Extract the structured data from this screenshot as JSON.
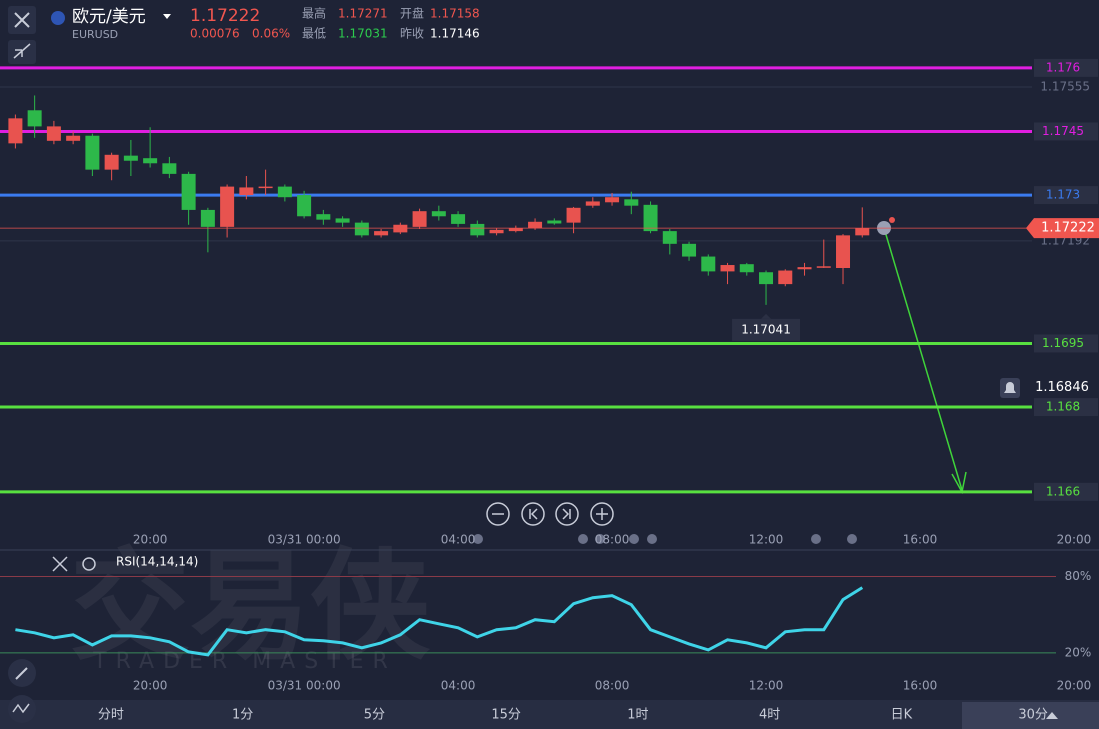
{
  "header": {
    "pair": "欧元/美元",
    "symbol": "EURUSD",
    "price": "1.17222",
    "change": "0.00076",
    "change_pct": "0.06%",
    "stats": [
      {
        "label": "最高",
        "value": "1.17271"
      },
      {
        "label": "开盘",
        "value": "1.17158"
      },
      {
        "label": "最低",
        "value": "1.17031"
      },
      {
        "label": "昨收",
        "value": "1.17146"
      }
    ]
  },
  "watermark": {
    "title": "交易侠",
    "subtitle": "TRADER MASTER"
  },
  "chart_data": [
    {
      "type": "candlestick",
      "up_color": "#e8534f",
      "down_color": "#2db84a",
      "open": [
        1.17422,
        1.175,
        1.17428,
        1.17428,
        1.1744,
        1.1736,
        1.17393,
        1.17387,
        1.17375,
        1.1735,
        1.17265,
        1.17225,
        1.173,
        1.17318,
        1.1732,
        1.173,
        1.17255,
        1.17245,
        1.17235,
        1.17205,
        1.17212,
        1.17225,
        1.17262,
        1.17255,
        1.17232,
        1.1721,
        1.17215,
        1.17222,
        1.1724,
        1.17235,
        1.17275,
        1.17283,
        1.1729,
        1.17277,
        1.17215,
        1.17185,
        1.17155,
        1.1712,
        1.17137,
        1.17118,
        1.1709,
        1.17125,
        1.1713,
        1.17128,
        1.17205
      ],
      "high": [
        1.1749,
        1.17535,
        1.17475,
        1.1745,
        1.17445,
        1.174,
        1.1743,
        1.1746,
        1.1739,
        1.17355,
        1.1727,
        1.17325,
        1.17345,
        1.1736,
        1.17325,
        1.1731,
        1.17265,
        1.1725,
        1.1724,
        1.1722,
        1.17235,
        1.17268,
        1.17275,
        1.17262,
        1.1724,
        1.17222,
        1.17228,
        1.17245,
        1.17245,
        1.17272,
        1.17295,
        1.17305,
        1.17308,
        1.17285,
        1.1722,
        1.1719,
        1.1716,
        1.1714,
        1.1714,
        1.17122,
        1.17125,
        1.1714,
        1.17195,
        1.17208,
        1.17271
      ],
      "low": [
        1.1741,
        1.17435,
        1.1742,
        1.1742,
        1.17345,
        1.17335,
        1.17345,
        1.17365,
        1.1734,
        1.1723,
        1.17165,
        1.172,
        1.1729,
        1.173,
        1.17285,
        1.17245,
        1.1723,
        1.17225,
        1.172,
        1.172,
        1.17208,
        1.1722,
        1.1724,
        1.17225,
        1.172,
        1.17205,
        1.17212,
        1.17218,
        1.1723,
        1.1721,
        1.1727,
        1.17275,
        1.17255,
        1.1721,
        1.1716,
        1.17145,
        1.1711,
        1.1709,
        1.1711,
        1.17041,
        1.17085,
        1.1711,
        1.17128,
        1.1709,
        1.172
      ],
      "close": [
        1.17481,
        1.17462,
        1.17462,
        1.1744,
        1.1736,
        1.17395,
        1.17381,
        1.17375,
        1.1735,
        1.17265,
        1.17225,
        1.1732,
        1.17318,
        1.1732,
        1.17295,
        1.1725,
        1.17242,
        1.17235,
        1.17205,
        1.17215,
        1.1723,
        1.17262,
        1.1725,
        1.17232,
        1.17205,
        1.17218,
        1.17222,
        1.17237,
        1.17233,
        1.1727,
        1.17285,
        1.17295,
        1.17275,
        1.17215,
        1.17185,
        1.17155,
        1.1712,
        1.17135,
        1.17118,
        1.1709,
        1.17122,
        1.1713,
        1.17132,
        1.17205,
        1.17222
      ],
      "xlim": [
        -0.8,
        56.3
      ],
      "xticks": [
        {
          "value": 7,
          "label": "20:00"
        },
        {
          "value": 15,
          "label": "03/31 00:00"
        },
        {
          "value": 23,
          "label": "04:00"
        },
        {
          "value": 31,
          "label": "08:00"
        },
        {
          "value": 39,
          "label": "12:00"
        },
        {
          "value": 47,
          "label": "16:00"
        },
        {
          "value": 55,
          "label": "20:00"
        }
      ],
      "ylim": [
        1.1651,
        1.17654
      ],
      "yticks": [
        1.17555,
        1.17192
      ],
      "levels": [
        {
          "value": 1.176,
          "color": "#e01ee0"
        },
        {
          "value": 1.1745,
          "color": "#e01ee0"
        },
        {
          "value": 1.173,
          "color": "#3b7bf0"
        },
        {
          "value": 1.1695,
          "color": "#58e040"
        },
        {
          "value": 1.168,
          "color": "#58e040"
        },
        {
          "value": 1.166,
          "color": "#58e040"
        }
      ],
      "alert": 1.16846
    },
    {
      "type": "line",
      "title": "RSI(14,14,14)",
      "color": "#3fd4e8",
      "values": [
        38.2,
        35.8,
        31.9,
        34.2,
        26.3,
        33.4,
        33.4,
        31.9,
        28.7,
        20.8,
        18.4,
        38.2,
        35.8,
        38.2,
        36.6,
        30.3,
        29.5,
        27.9,
        24.0,
        27.9,
        34.2,
        46.1,
        42.9,
        39.7,
        32.6,
        38.2,
        39.7,
        46.1,
        44.5,
        58.7,
        63.4,
        65.0,
        57.9,
        38.2,
        32.6,
        27.1,
        22.4,
        30.3,
        27.9,
        24.0,
        36.6,
        38.2,
        38.2,
        61.9,
        71.3
      ],
      "xlim": [
        -0.8,
        56.3
      ],
      "xticks": [
        {
          "value": 7,
          "label": "20:00"
        },
        {
          "value": 15,
          "label": "03/31 00:00"
        },
        {
          "value": 23,
          "label": "04:00"
        },
        {
          "value": 31,
          "label": "08:00"
        },
        {
          "value": 39,
          "label": "12:00"
        },
        {
          "value": 47,
          "label": "16:00"
        },
        {
          "value": 55,
          "label": "20:00"
        }
      ],
      "ylim": [
        -17,
        93
      ],
      "yticks": [
        {
          "value": 80,
          "label": "80%"
        },
        {
          "value": 20,
          "label": "20%"
        }
      ]
    }
  ],
  "tabs": [
    "分时",
    "1分",
    "5分",
    "15分",
    "1时",
    "4时",
    "日K",
    "30分"
  ]
}
